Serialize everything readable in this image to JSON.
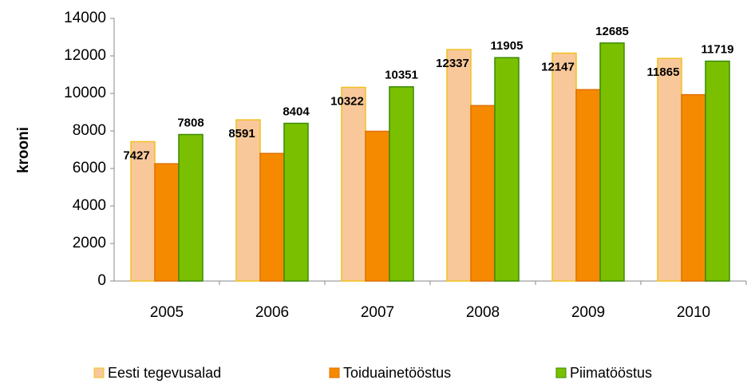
{
  "chart_data": {
    "type": "bar",
    "y_label": "krooni",
    "categories": [
      "2005",
      "2006",
      "2007",
      "2008",
      "2009",
      "2010"
    ],
    "series": [
      {
        "name": "Eesti tegevusalad",
        "color": "#f9c89a",
        "border": "#f0c020",
        "values": [
          7427,
          8591,
          10322,
          12337,
          12147,
          11865
        ],
        "show_labels": true
      },
      {
        "name": "Toiduainetööstus",
        "color": "#f58a00",
        "border": "#e07000",
        "values": [
          6250,
          6800,
          7980,
          9350,
          10200,
          9930
        ],
        "show_labels": false
      },
      {
        "name": "Piimatööstus",
        "color": "#7ac000",
        "border": "#3a8a00",
        "values": [
          7808,
          8404,
          10351,
          11905,
          12685,
          11719
        ],
        "show_labels": true
      }
    ],
    "ylim": [
      0,
      14000
    ],
    "yticks": [
      0,
      2000,
      4000,
      6000,
      8000,
      10000,
      12000,
      14000
    ],
    "grid": false
  }
}
